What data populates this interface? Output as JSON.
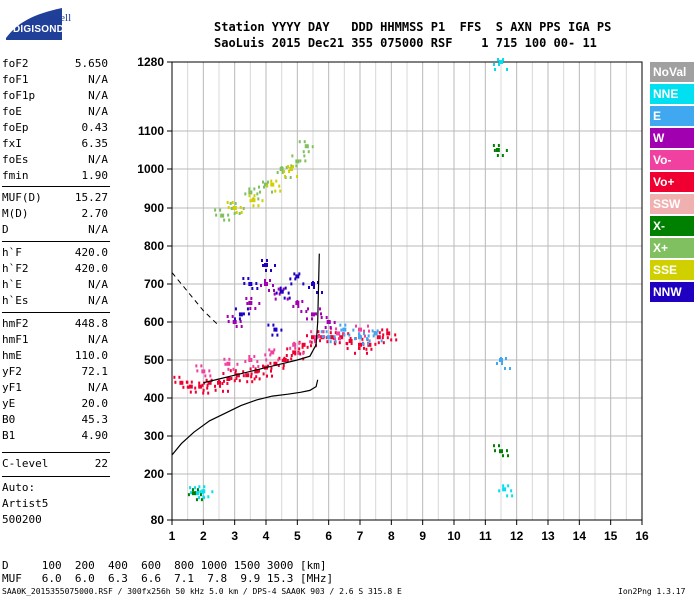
{
  "header": {
    "line1": "Station YYYY DAY   DDD HHMMSS P1  FFS  S AXN PPS IGA PS",
    "line2": "SaoLuis 2015 Dec21 355 075000 RSF    1 715 100 00- 11"
  },
  "logo": {
    "lowell": "Lowell",
    "digisonde": "DIGISONDE"
  },
  "params": [
    {
      "name": "foF2",
      "value": "5.650"
    },
    {
      "name": "foF1",
      "value": "N/A"
    },
    {
      "name": "foF1p",
      "value": "N/A"
    },
    {
      "name": "foE",
      "value": "N/A"
    },
    {
      "name": "foEp",
      "value": "0.43"
    },
    {
      "name": "fxI",
      "value": "6.35"
    },
    {
      "name": "foEs",
      "value": "N/A"
    },
    {
      "name": "fmin",
      "value": "1.90"
    },
    {
      "name": "MUF(D)",
      "value": "15.27"
    },
    {
      "name": "M(D)",
      "value": "2.70"
    },
    {
      "name": "D",
      "value": "N/A"
    },
    {
      "name": "h`F",
      "value": "420.0"
    },
    {
      "name": "h`F2",
      "value": "420.0"
    },
    {
      "name": "h`E",
      "value": "N/A"
    },
    {
      "name": "h`Es",
      "value": "N/A"
    },
    {
      "name": "hmF2",
      "value": "448.8"
    },
    {
      "name": "hmF1",
      "value": "N/A"
    },
    {
      "name": "hmE",
      "value": "110.0"
    },
    {
      "name": "yF2",
      "value": "72.1"
    },
    {
      "name": "yF1",
      "value": "N/A"
    },
    {
      "name": "yE",
      "value": "20.0"
    },
    {
      "name": "B0",
      "value": "45.3"
    },
    {
      "name": "B1",
      "value": "4.90"
    },
    {
      "name": "C-level",
      "value": "22"
    }
  ],
  "auto": {
    "label": "Auto:",
    "program": "Artist5",
    "version": "500200"
  },
  "legend": [
    {
      "label": "NoVal",
      "color": "#a0a0a0"
    },
    {
      "label": "NNE",
      "color": "#00e0f0"
    },
    {
      "label": "E",
      "color": "#40a8f0"
    },
    {
      "label": "W",
      "color": "#a000b0"
    },
    {
      "label": "Vo-",
      "color": "#f040a0"
    },
    {
      "label": "Vo+",
      "color": "#f00030"
    },
    {
      "label": "SSW",
      "color": "#f0b0b0"
    },
    {
      "label": "X-",
      "color": "#008000"
    },
    {
      "label": "X+",
      "color": "#80c060"
    },
    {
      "label": "SSE",
      "color": "#d0d000"
    },
    {
      "label": "NNW",
      "color": "#2000c0"
    }
  ],
  "muf_table": {
    "d_line": "D     100  200  400  600  800 1000 1500 3000 [km]",
    "muf_line": "MUF   6.0  6.0  6.3  6.6  7.1  7.8  9.9 15.3 [MHz]"
  },
  "footer": {
    "left": "SAA0K_2015355075000.RSF / 300fx256h 50 kHz 5.0 km / DPS-4 SAA0K 903 / 2.6 S 315.8 E",
    "right": "Ion2Png 1.3.17"
  },
  "chart_data": {
    "type": "scatter",
    "x_ticks": [
      1,
      2,
      3,
      4,
      5,
      6,
      7,
      8,
      9,
      10,
      11,
      12,
      13,
      14,
      15,
      16
    ],
    "y_ticks": [
      80,
      200,
      300,
      400,
      500,
      600,
      700,
      800,
      900,
      1000,
      1100,
      1280
    ],
    "xlim": [
      1,
      16
    ],
    "ylim": [
      80,
      1280
    ],
    "y_scale": "log-like",
    "grid": true,
    "series": [
      {
        "name": "Vo+",
        "color": "#f00030",
        "x": [
          1.3,
          1.6,
          1.9,
          2.2,
          2.5,
          2.8,
          3.1,
          3.4,
          3.7,
          4.0,
          4.3,
          4.6,
          4.9,
          5.2,
          5.5,
          5.8,
          6.1,
          6.4,
          6.7,
          7.0,
          7.3,
          7.6,
          7.9
        ],
        "y": [
          440,
          430,
          430,
          440,
          440,
          450,
          460,
          460,
          470,
          480,
          490,
          500,
          520,
          540,
          560,
          560,
          560,
          560,
          550,
          540,
          540,
          560,
          570
        ]
      },
      {
        "name": "Vo-",
        "color": "#f040a0",
        "x": [
          2.0,
          2.8,
          3.5,
          4.2,
          4.9,
          5.6,
          6.3,
          7.0
        ],
        "y": [
          470,
          490,
          500,
          520,
          540,
          560,
          570,
          580
        ]
      },
      {
        "name": "W",
        "color": "#a000b0",
        "x": [
          3.0,
          3.5,
          4.0,
          4.5,
          5.0,
          5.5,
          6.0
        ],
        "y": [
          600,
          650,
          700,
          680,
          650,
          620,
          600
        ]
      },
      {
        "name": "NNW",
        "color": "#2000c0",
        "x": [
          3.5,
          4.0,
          4.5,
          5.0,
          5.5,
          3.2,
          4.3
        ],
        "y": [
          700,
          750,
          680,
          720,
          700,
          620,
          580
        ]
      },
      {
        "name": "X+",
        "color": "#80c060",
        "x": [
          2.6,
          3.0,
          3.5,
          4.0,
          4.5,
          5.0,
          5.3
        ],
        "y": [
          880,
          900,
          940,
          960,
          1000,
          1020,
          1060
        ]
      },
      {
        "name": "SSE",
        "color": "#d0d000",
        "x": [
          3.0,
          3.6,
          4.2,
          4.8
        ],
        "y": [
          900,
          920,
          960,
          1000
        ]
      },
      {
        "name": "NNE",
        "color": "#00e0f0",
        "x": [
          1.8,
          2.0,
          11.6,
          11.5
        ],
        "y": [
          150,
          155,
          160,
          1280
        ]
      },
      {
        "name": "E",
        "color": "#40a8f0",
        "x": [
          6.0,
          6.5,
          7.0,
          7.5,
          11.5
        ],
        "y": [
          560,
          580,
          560,
          570,
          500
        ]
      },
      {
        "name": "X-",
        "color": "#008000",
        "x": [
          11.5,
          11.4,
          1.7
        ],
        "y": [
          260,
          1050,
          150
        ]
      }
    ],
    "profile_curve": {
      "x": [
        1.0,
        1.3,
        1.7,
        2.2,
        2.7,
        3.2,
        3.7,
        4.2,
        4.7,
        5.1,
        5.4,
        5.6,
        5.65
      ],
      "y": [
        250,
        280,
        310,
        340,
        360,
        380,
        395,
        405,
        410,
        415,
        420,
        430,
        448
      ]
    },
    "trace_o": {
      "x": [
        2.0,
        2.5,
        3.0,
        3.5,
        4.0,
        4.5,
        5.0,
        5.4,
        5.6,
        5.65,
        5.7
      ],
      "y": [
        440,
        450,
        460,
        470,
        480,
        490,
        500,
        510,
        540,
        600,
        780
      ]
    },
    "trace_x": {
      "x": [
        1.0,
        1.5,
        2.0,
        2.5
      ],
      "y": [
        730,
        680,
        630,
        590
      ]
    }
  }
}
